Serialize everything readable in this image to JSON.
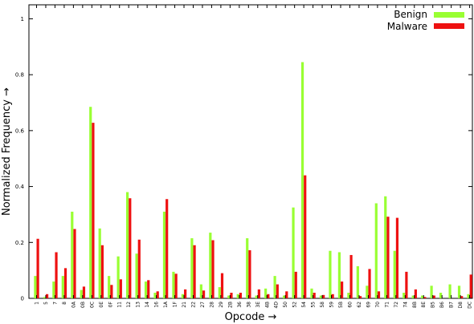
{
  "chart_data": {
    "type": "bar",
    "title": "",
    "xlabel": "Opcode →",
    "ylabel": "Normalized Frequency →",
    "ylim": [
      0,
      1.05
    ],
    "yticks": [
      0,
      0.2,
      0.4,
      0.6,
      0.8,
      1
    ],
    "ytick_labels": [
      "0",
      "0.2",
      "0.4",
      "0.6",
      "0.8",
      "1"
    ],
    "grid": false,
    "legend_position": "top-right",
    "categories": [
      "1",
      "5",
      "7",
      "8",
      "0A",
      "0B",
      "0C",
      "0E",
      "0F",
      "11",
      "12",
      "13",
      "14",
      "16",
      "1A",
      "1F",
      "21",
      "22",
      "27",
      "28",
      "29",
      "2B",
      "36",
      "38",
      "3E",
      "4B",
      "4D",
      "50",
      "52",
      "54",
      "55",
      "58",
      "59",
      "5B",
      "60",
      "62",
      "69",
      "70",
      "71",
      "72",
      "74",
      "8B",
      "8E",
      "B5",
      "B6",
      "B7",
      "D8",
      "DC",
      "DF"
    ],
    "series": [
      {
        "name": "Benign",
        "color": "#99ff33",
        "values": [
          0.08,
          0.005,
          0.06,
          0.08,
          0.31,
          0.03,
          0.685,
          0.25,
          0.08,
          0.15,
          0.38,
          0.16,
          0.06,
          0.02,
          0.31,
          0.095,
          0.015,
          0.215,
          0.05,
          0.235,
          0.04,
          0.01,
          0.015,
          0.215,
          0.01,
          0.035,
          0.08,
          0.01,
          0.325,
          0.845,
          0.035,
          0.01,
          0.17,
          0.165,
          0.02,
          0.115,
          0.045,
          0.34,
          0.365,
          0.17,
          0.02,
          0.01,
          0.01,
          0.045,
          0.02,
          0.05,
          0.045,
          0.015,
          0.03
        ]
      },
      {
        "name": "Malware",
        "color": "#ee1111",
        "values": [
          0.213,
          0.015,
          0.165,
          0.108,
          0.248,
          0.042,
          0.628,
          0.19,
          0.048,
          0.068,
          0.358,
          0.21,
          0.065,
          0.025,
          0.355,
          0.088,
          0.032,
          0.19,
          0.028,
          0.208,
          0.09,
          0.02,
          0.02,
          0.172,
          0.032,
          0.015,
          0.05,
          0.025,
          0.095,
          0.44,
          0.02,
          0.012,
          0.015,
          0.06,
          0.155,
          0.008,
          0.105,
          0.025,
          0.292,
          0.288,
          0.095,
          0.032,
          0.005,
          0.01,
          0.0,
          0.0,
          0.008,
          0.085,
          0.01
        ]
      }
    ]
  }
}
